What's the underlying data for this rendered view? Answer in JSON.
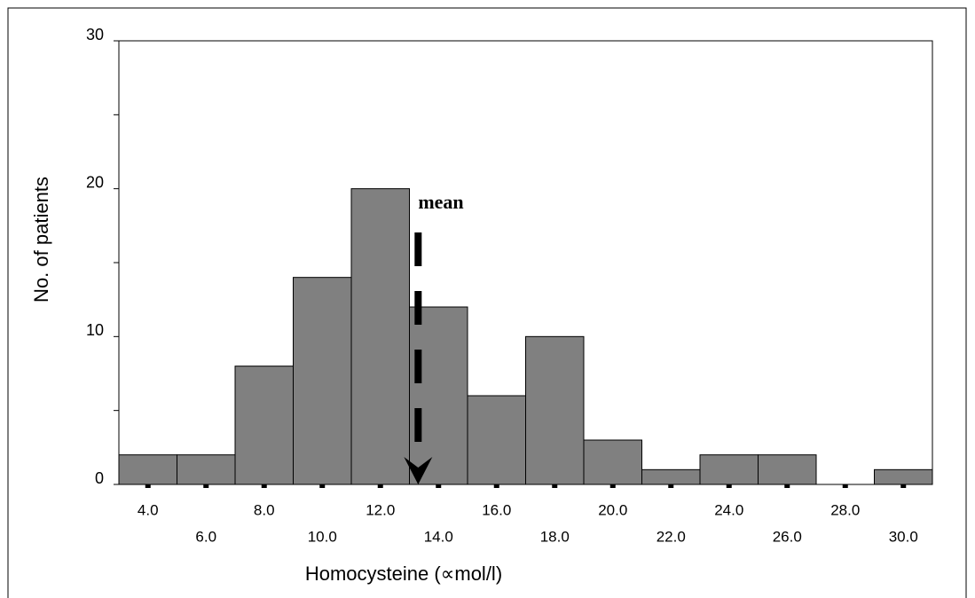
{
  "chart_data": {
    "type": "histogram",
    "xlabel": "Homocysteine (∝mol/l)",
    "ylabel": "No. of patients",
    "bins": [
      3,
      5,
      7,
      9,
      11,
      13,
      15,
      17,
      19,
      21,
      23,
      25,
      27,
      29,
      31
    ],
    "counts": [
      2,
      2,
      8,
      14,
      20,
      12,
      6,
      10,
      3,
      1,
      2,
      2,
      0,
      1
    ],
    "color": "#808080",
    "xlim": [
      3,
      31
    ],
    "ylim": [
      0,
      30
    ],
    "xticks": [
      {
        "value": 4,
        "label": "4.0"
      },
      {
        "value": 6,
        "label": "6.0"
      },
      {
        "value": 8,
        "label": "8.0"
      },
      {
        "value": 10,
        "label": "10.0"
      },
      {
        "value": 12,
        "label": "12.0"
      },
      {
        "value": 14,
        "label": "14.0"
      },
      {
        "value": 16,
        "label": "16.0"
      },
      {
        "value": 18,
        "label": "18.0"
      },
      {
        "value": 20,
        "label": "20.0"
      },
      {
        "value": 22,
        "label": "22.0"
      },
      {
        "value": 24,
        "label": "24.0"
      },
      {
        "value": 26,
        "label": "26.0"
      },
      {
        "value": 28,
        "label": "28.0"
      },
      {
        "value": 30,
        "label": "30.0"
      }
    ],
    "yticks": [
      0,
      10,
      20,
      30
    ],
    "yminor_ticks": [
      5,
      15,
      25
    ],
    "annotation": {
      "text": "mean",
      "x": 13.3
    }
  }
}
